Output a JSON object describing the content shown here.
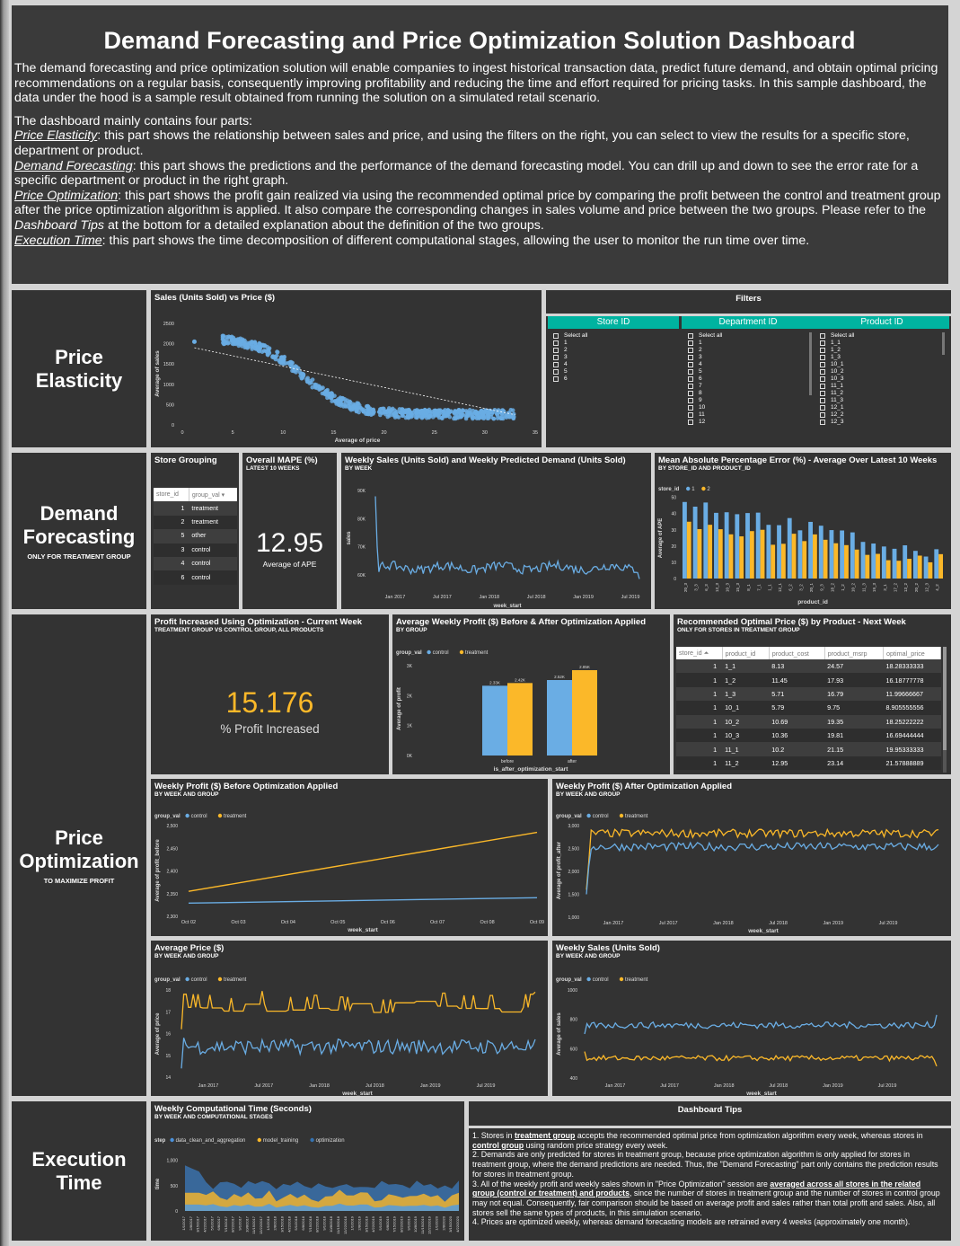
{
  "header": {
    "title": "Demand Forecasting and Price Optimization Solution Dashboard",
    "intro": "The demand forecasting and price optimization solution will enable companies to ingest historical transaction data, predict future demand, and obtain optimal pricing recommendations on a regular basis, consequently improving profitability and reducing the time and effort required for pricing tasks. In this sample dashboard, the data under the hood is a sample result obtained from running the solution on a simulated retail scenario.",
    "parts_lead": "The dashboard mainly contains four parts:",
    "p1_name": "Price Elasticity",
    "p1_text": ": this part shows the relationship between sales and price, and using the filters on the right, you can select to view the results for a specific store, department or product.",
    "p2_name": "Demand Forecasting",
    "p2_text": ": this part shows the predictions and the performance of the demand forecasting model. You can drill up and down to see the error rate for a specific department or product in the right graph.",
    "p3_name": "Price Optimization",
    "p3_text": ": this part shows the profit gain realized via using the recommended optimal price by comparing the profit between the control and treatment group after the price optimization algorithm is applied. It also compare the corresponding changes in sales volume and price between the two groups. Please refer to the ",
    "p3_tips": "Dashboard Tips",
    "p3_text2": " at the bottom for a detailed explanation about the definition of the two groups.",
    "p4_name": "Execution Time",
    "p4_text": ": this part shows the time decomposition of different computational stages, allowing the user to monitor the run time over time."
  },
  "sections": {
    "pe": "Price Elasticity",
    "df": "Demand Forecasting",
    "df_sub": "ONLY FOR TREATMENT GROUP",
    "po": "Price Optimization",
    "po_sub": "TO MAXIMIZE PROFIT",
    "et": "Execution Time"
  },
  "colors": {
    "control": "#6aade4",
    "treatment": "#fbb829",
    "panel": "#333333",
    "filter": "#00b3a0"
  },
  "scatter": {
    "title": "Sales (Units Sold) vs Price ($)",
    "xlabel": "Average of price",
    "ylabel": "Average of sales"
  },
  "filters": {
    "title": "Filters",
    "store_head": "Store ID",
    "dept_head": "Department ID",
    "prod_head": "Product ID",
    "store_items": [
      "Select all",
      "1",
      "2",
      "3",
      "4",
      "5",
      "6"
    ],
    "dept_items": [
      "Select all",
      "1",
      "2",
      "3",
      "4",
      "5",
      "6",
      "7",
      "8",
      "9",
      "10",
      "11",
      "12"
    ],
    "prod_items": [
      "Select all",
      "1_1",
      "1_2",
      "1_3",
      "10_1",
      "10_2",
      "10_3",
      "11_1",
      "11_2",
      "11_3",
      "12_1",
      "12_2",
      "12_3"
    ]
  },
  "store_grouping": {
    "title": "Store Grouping",
    "col1": "store_id",
    "col2": "group_val",
    "rows": [
      [
        "1",
        "treatment"
      ],
      [
        "2",
        "treatment"
      ],
      [
        "5",
        "other"
      ],
      [
        "3",
        "control"
      ],
      [
        "4",
        "control"
      ],
      [
        "6",
        "control"
      ]
    ]
  },
  "mape": {
    "title": "Overall MAPE (%)",
    "sub": "LATEST 10 WEEKS",
    "value": "12.95",
    "label": "Average of APE"
  },
  "weekly_sales_pred": {
    "title": "Weekly Sales (Units Sold) and Weekly Predicted Demand (Units Sold)",
    "sub": "BY WEEK",
    "ylabel": "sales",
    "xlabel": "week_start"
  },
  "mape_bar": {
    "title": "Mean Absolute Percentage Error (%) - Average Over Latest 10 Weeks",
    "sub": "BY STORE_ID AND PRODUCT_ID",
    "legend": "store_id",
    "s1": "1",
    "s2": "2",
    "ylabel": "Average of APE",
    "xlabel": "product_id"
  },
  "profit_inc": {
    "title": "Profit Increased Using Optimization - Current Week",
    "sub": "TREATMENT GROUP VS CONTROL GROUP, ALL PRODUCTS",
    "value": "15.176",
    "label": "% Profit Increased"
  },
  "avg_profit": {
    "title": "Average Weekly Profit ($) Before & After Optimization Applied",
    "sub": "BY GROUP",
    "legend": "group_val",
    "control": "control",
    "treatment": "treatment",
    "ylabel": "Average of profit",
    "xlabel": "is_after_optimization_start",
    "cat_before": "before",
    "cat_after": "after",
    "vals": [
      "2.33K",
      "2.42K",
      "2.52K",
      "2.85K"
    ]
  },
  "opt_price": {
    "title": "Recommended Optimal Price ($) by Product - Next Week",
    "sub": "ONLY FOR STORES IN TREATMENT GROUP",
    "cols": [
      "store_id",
      "product_id",
      "product_cost",
      "product_msrp",
      "optimal_price"
    ],
    "rows": [
      [
        "1",
        "1_1",
        "8.13",
        "24.57",
        "18.28333333"
      ],
      [
        "1",
        "1_2",
        "11.45",
        "17.93",
        "16.18777778"
      ],
      [
        "1",
        "1_3",
        "5.71",
        "16.79",
        "11.99666667"
      ],
      [
        "1",
        "10_1",
        "5.79",
        "9.75",
        "8.905555556"
      ],
      [
        "1",
        "10_2",
        "10.69",
        "19.35",
        "18.25222222"
      ],
      [
        "1",
        "10_3",
        "10.36",
        "19.81",
        "16.69444444"
      ],
      [
        "1",
        "11_1",
        "10.2",
        "21.15",
        "19.95333333"
      ],
      [
        "1",
        "11_2",
        "12.95",
        "23.14",
        "21.57888889"
      ]
    ]
  },
  "profit_before": {
    "title": "Weekly Profit ($) Before Optimization Applied",
    "sub": "BY WEEK AND GROUP",
    "ylabel": "Average of profit_before",
    "xlabel": "week_start"
  },
  "profit_after": {
    "title": "Weekly Profit ($) After Optimization Applied",
    "sub": "BY WEEK AND GROUP",
    "ylabel": "Average of profit_after",
    "xlabel": "week_start"
  },
  "avg_price": {
    "title": "Average Price ($)",
    "sub": "BY WEEK AND GROUP",
    "ylabel": "Average of price",
    "xlabel": "week_start"
  },
  "weekly_sales": {
    "title": "Weekly Sales (Units Sold)",
    "sub": "BY WEEK AND GROUP",
    "ylabel": "Average of sales",
    "xlabel": "week_start"
  },
  "comp_time": {
    "title": "Weekly Computational Time (Seconds)",
    "sub": "BY WEEK AND COMPUTATIONAL STAGES",
    "legend": "step",
    "s1": "data_clean_and_aggregation",
    "s2": "model_training",
    "s3": "optimization",
    "ylabel": "time"
  },
  "tips": {
    "title": "Dashboard Tips",
    "t1a": "1. Stores in ",
    "t1b": "treatment group",
    "t1c": " accepts the recommended optimal price from optimization algorithm every week, whereas stores in ",
    "t1d": "control group",
    "t1e": " using random price strategy every week.",
    "t2": "2. Demands are only predicted for stores in treatment group, because price optimization algorithm is only applied for stores in treatment group, where the demand predictions are needed. Thus, the \"Demand Forecasting\" part only contains the prediction results for stores in treatment group.",
    "t3a": "3. All of the weekly profit and weekly sales shown in \"Price Optimization\" session are ",
    "t3b": "averaged across all stores in the related group (control or treatment) and products",
    "t3c": ", since the number of stores in treatment group and the number of stores in control group may not equal. Consequently, fair comparison should be based on average profit and sales rather than total profit and sales. Also, all stores sell the same types of products, in this simulation scenario.",
    "t4": "4. Prices are optimized weekly, whereas demand forecasting models are retrained every 4 weeks (approximately one month)."
  },
  "chart_data": [
    {
      "type": "scatter",
      "name": "Sales vs Price",
      "xlabel": "Average of price",
      "ylabel": "Average of sales",
      "xlim": [
        0,
        35
      ],
      "ylim": [
        0,
        2500
      ],
      "xticks": [
        0,
        5,
        10,
        15,
        20,
        25,
        30,
        35
      ],
      "yticks": [
        0,
        500,
        1000,
        1500,
        2000,
        2500
      ],
      "trend": "decreasing from ~1900 at price 1 to ~250 at price 33"
    },
    {
      "type": "line",
      "name": "Weekly sales vs predicted demand",
      "ylabel": "sales",
      "yticks": [
        "60K",
        "70K",
        "80K",
        "90K"
      ],
      "xticks": [
        "Jan 2017",
        "Jul 2017",
        "Jan 2018",
        "Jul 2018",
        "Jan 2019",
        "Jul 2019"
      ]
    },
    {
      "type": "bar",
      "name": "MAPE by product",
      "series": [
        {
          "name": "1"
        },
        {
          "name": "2"
        }
      ],
      "yticks": [
        0,
        10,
        20,
        30,
        40,
        50
      ]
    },
    {
      "type": "bar",
      "name": "Average weekly profit",
      "categories": [
        "before",
        "after"
      ],
      "series": [
        {
          "name": "control",
          "values": [
            2330,
            2520
          ]
        },
        {
          "name": "treatment",
          "values": [
            2420,
            2850
          ]
        }
      ],
      "yticks": [
        "0K",
        "1K",
        "2K",
        "3K"
      ]
    },
    {
      "type": "line",
      "name": "Weekly profit before",
      "yticks": [
        2300,
        2350,
        2400,
        2450,
        2500
      ],
      "xticks": [
        "Oct 02",
        "Oct 03",
        "Oct 04",
        "Oct 05",
        "Oct 06",
        "Oct 07",
        "Oct 08",
        "Oct 09"
      ],
      "series": [
        {
          "name": "control",
          "values": [
            2329,
            2341
          ]
        },
        {
          "name": "treatment",
          "values": [
            2355,
            2485
          ]
        }
      ]
    },
    {
      "type": "line",
      "name": "Weekly profit after",
      "yticks": [
        1000,
        1500,
        2000,
        2500,
        3000
      ],
      "xticks": [
        "Jan 2017",
        "Jul 2017",
        "Jan 2018",
        "Jul 2018",
        "Jan 2019",
        "Jul 2019"
      ]
    },
    {
      "type": "line",
      "name": "Average price",
      "yticks": [
        14,
        15,
        16,
        17,
        18
      ],
      "xticks": [
        "Jan 2017",
        "Jul 2017",
        "Jan 2018",
        "Jul 2018",
        "Jan 2019",
        "Jul 2019"
      ]
    },
    {
      "type": "line",
      "name": "Weekly sales",
      "yticks": [
        400,
        600,
        800,
        1000
      ],
      "xticks": [
        "Jan 2017",
        "Jul 2017",
        "Jan 2018",
        "Jul 2018",
        "Jan 2019",
        "Jul 2019"
      ]
    },
    {
      "type": "area",
      "name": "Computational time",
      "yticks": [
        0,
        500,
        "1,000"
      ]
    }
  ]
}
